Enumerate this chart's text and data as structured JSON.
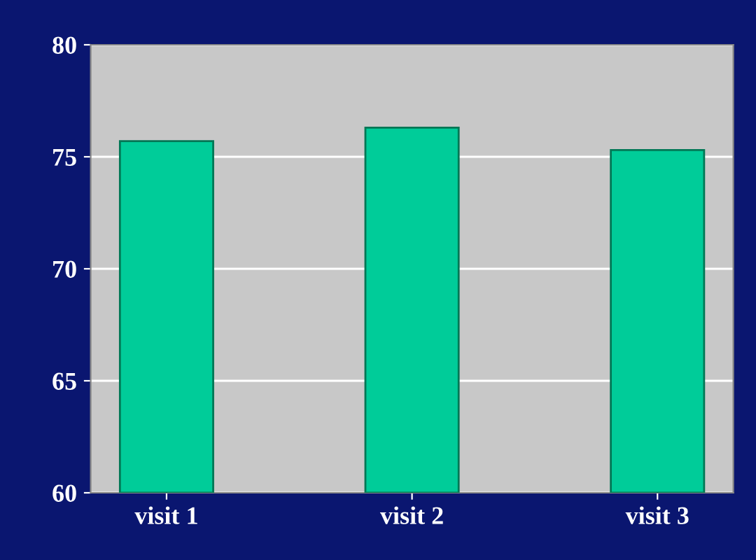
{
  "chart_data": {
    "type": "bar",
    "categories": [
      "visit 1",
      "visit 2",
      "visit 3"
    ],
    "values": [
      75.7,
      76.3,
      75.3
    ],
    "color": "#00cc99",
    "ylim": [
      60,
      80
    ],
    "yticks": [
      60,
      65,
      70,
      75,
      80
    ],
    "grid": "y"
  }
}
